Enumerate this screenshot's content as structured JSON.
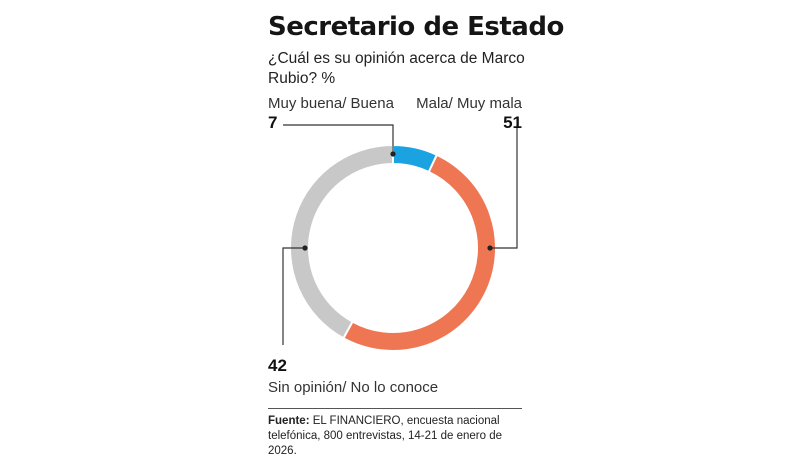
{
  "title": "Secretario de Estado",
  "subtitle": "¿Cuál es su opinión acerca de Marco Rubio? %",
  "chart_data": {
    "type": "pie",
    "donut": true,
    "slices": [
      {
        "label": "Muy buena/ Buena",
        "value": 7,
        "color": "#1aa3e0"
      },
      {
        "label": "Mala/ Muy mala",
        "value": 51,
        "color": "#ef7653"
      },
      {
        "label": "Sin opinión/ No lo conoce",
        "value": 42,
        "color": "#c8c8c8"
      }
    ],
    "unit": "%",
    "start": "top, clockwise"
  },
  "labels": {
    "good": {
      "text": "Muy buena/ Buena",
      "value": "7"
    },
    "bad": {
      "text": "Mala/ Muy mala",
      "value": "51"
    },
    "none": {
      "text": "Sin opinión/ No lo conoce",
      "value": "42"
    }
  },
  "source": {
    "prefix": "Fuente:",
    "text": " EL FINANCIERO, encuesta nacional telefónica, 800 entrevistas, 14-21 de enero de 2026."
  }
}
